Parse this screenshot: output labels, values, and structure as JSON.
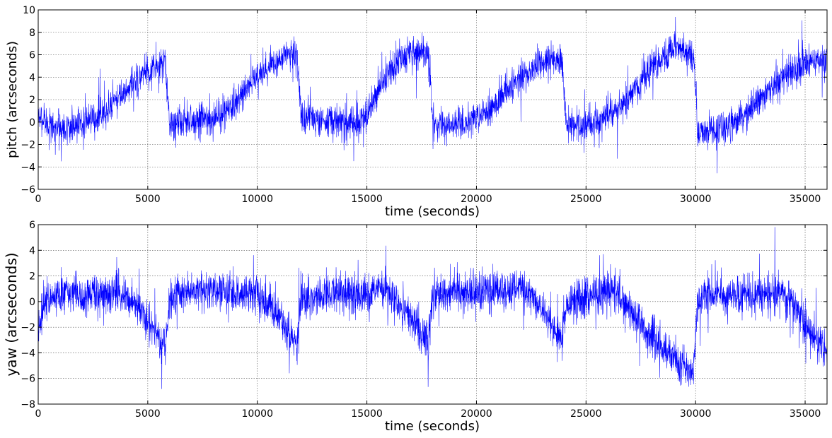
{
  "chart_data": [
    {
      "type": "line",
      "xlabel": "time (seconds)",
      "ylabel": "pitch (arcseconds)",
      "xlim": [
        0,
        36000
      ],
      "ylim": [
        -6,
        10
      ],
      "xticks": [
        0,
        5000,
        10000,
        15000,
        20000,
        25000,
        30000,
        35000
      ],
      "xtick_labels": [
        "0",
        "5000",
        "10000",
        "15000",
        "20000",
        "25000",
        "30000",
        "35000"
      ],
      "yticks": [
        -6,
        -4,
        -2,
        0,
        2,
        4,
        6,
        8,
        10
      ],
      "ytick_labels": [
        "−6",
        "−4",
        "−2",
        "0",
        "2",
        "4",
        "6",
        "8",
        "10"
      ],
      "grid": true,
      "line_color": "#0000ff",
      "series": [
        {
          "x": [
            0,
            500,
            1000,
            1500,
            2000,
            2500,
            3000,
            3500,
            4000,
            4500,
            5000,
            5500,
            5800,
            6000,
            6500,
            7000,
            7500,
            8000,
            8500,
            9000,
            9500,
            10000,
            10500,
            11000,
            11500,
            11800,
            12000,
            12500,
            13000,
            13500,
            14000,
            14500,
            15000,
            15500,
            16000,
            16500,
            17000,
            17500,
            17800,
            18000,
            18500,
            19000,
            19500,
            20000,
            20500,
            21000,
            21500,
            22000,
            22500,
            23000,
            23500,
            23900,
            24100,
            24500,
            25000,
            25500,
            26000,
            26500,
            27000,
            27500,
            28000,
            28500,
            29000,
            29500,
            29900,
            30100,
            30500,
            31000,
            31500,
            32000,
            32500,
            33000,
            33500,
            34000,
            34500,
            35000,
            35500,
            36000
          ],
          "y": [
            0.5,
            -0.3,
            -0.5,
            -0.4,
            0.0,
            0.3,
            0.8,
            1.8,
            2.7,
            3.6,
            4.4,
            5.0,
            5.2,
            -0.2,
            0.0,
            -0.1,
            0.2,
            0.4,
            0.8,
            1.8,
            3.0,
            4.0,
            4.8,
            5.6,
            6.0,
            6.0,
            0.3,
            0.2,
            0.1,
            0.3,
            0.0,
            -0.2,
            0.6,
            2.8,
            4.2,
            5.4,
            6.1,
            6.3,
            6.2,
            -0.2,
            -0.5,
            -0.3,
            0.0,
            0.3,
            1.0,
            2.0,
            3.0,
            4.0,
            4.7,
            5.2,
            5.6,
            5.7,
            -0.5,
            -0.1,
            -0.2,
            0.0,
            0.5,
            1.4,
            2.5,
            3.6,
            4.8,
            5.8,
            6.5,
            6.5,
            6.2,
            -0.6,
            -0.9,
            -0.7,
            -0.2,
            0.3,
            1.0,
            2.2,
            3.2,
            4.0,
            4.6,
            5.2,
            5.5,
            5.3
          ]
        }
      ]
    },
    {
      "type": "line",
      "xlabel": "time (seconds)",
      "ylabel": "yaw (arcseconds)",
      "xlim": [
        0,
        36000
      ],
      "ylim": [
        -8,
        6
      ],
      "xticks": [
        0,
        5000,
        10000,
        15000,
        20000,
        25000,
        30000,
        35000
      ],
      "xtick_labels": [
        "0",
        "5000",
        "10000",
        "15000",
        "20000",
        "25000",
        "30000",
        "35000"
      ],
      "yticks": [
        -8,
        -6,
        -4,
        -2,
        0,
        2,
        4,
        6
      ],
      "ytick_labels": [
        "−8",
        "−6",
        "−4",
        "−2",
        "0",
        "2",
        "4",
        "6"
      ],
      "grid": true,
      "line_color": "#0000ff",
      "series": [
        {
          "x": [
            0,
            300,
            1000,
            2000,
            3000,
            3500,
            4000,
            4500,
            5000,
            5500,
            5800,
            6000,
            7000,
            8000,
            9000,
            10000,
            10500,
            11000,
            11500,
            11800,
            12000,
            13000,
            14000,
            15000,
            15500,
            16000,
            16500,
            17000,
            17500,
            17800,
            18000,
            19000,
            20000,
            21000,
            22000,
            22500,
            23000,
            23500,
            23900,
            24100,
            25000,
            26000,
            26500,
            27000,
            27500,
            28000,
            28500,
            29000,
            29500,
            29900,
            30100,
            31000,
            32000,
            33000,
            34000,
            34500,
            35000,
            35500,
            36000
          ],
          "y": [
            -2.5,
            0.2,
            0.6,
            0.4,
            0.5,
            0.7,
            0.6,
            -0.2,
            -1.5,
            -2.8,
            -3.7,
            0.5,
            0.8,
            1.0,
            0.7,
            0.6,
            -0.3,
            -1.3,
            -2.5,
            -3.5,
            0.3,
            0.5,
            0.8,
            0.6,
            1.0,
            0.8,
            -0.2,
            -1.3,
            -2.5,
            -3.2,
            0.5,
            0.6,
            0.6,
            0.8,
            1.0,
            0.5,
            -0.6,
            -2.0,
            -3.2,
            -0.3,
            0.3,
            0.8,
            0.5,
            -0.6,
            -1.8,
            -2.8,
            -3.7,
            -4.5,
            -5.3,
            -5.5,
            0.2,
            0.6,
            0.5,
            0.6,
            0.6,
            -0.2,
            -1.8,
            -3.0,
            -3.6
          ]
        }
      ]
    }
  ]
}
